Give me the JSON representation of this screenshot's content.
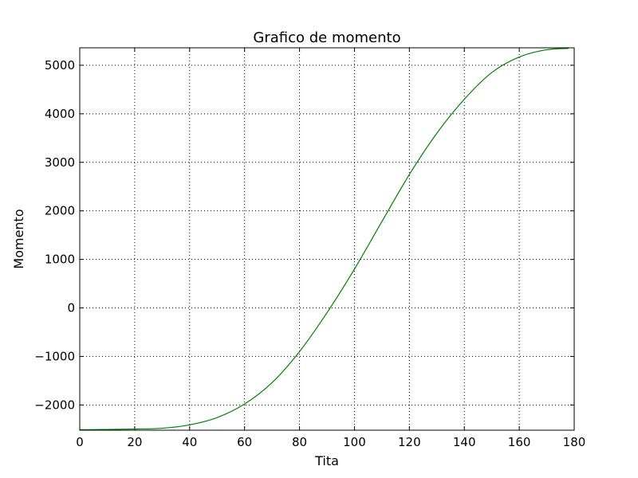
{
  "chart_data": {
    "type": "line",
    "title": "Grafico de momento",
    "xlabel": "Tita",
    "ylabel": "Momento",
    "xlim": [
      0,
      180
    ],
    "ylim": [
      -2520,
      5360
    ],
    "xticks": [
      0,
      20,
      40,
      60,
      80,
      100,
      120,
      140,
      160,
      180
    ],
    "yticks": [
      -2000,
      -1000,
      0,
      1000,
      2000,
      3000,
      4000,
      5000
    ],
    "ytick_labels": [
      "−2000",
      "−1000",
      "0",
      "1000",
      "2000",
      "3000",
      "4000",
      "5000"
    ],
    "grid": true,
    "series": [
      {
        "color": "#008000",
        "x": [
          0,
          10,
          20,
          30,
          40,
          50,
          60,
          70,
          80,
          90,
          100,
          110,
          120,
          130,
          140,
          150,
          160,
          170,
          178
        ],
        "y": [
          -2510,
          -2505,
          -2495,
          -2480,
          -2410,
          -2260,
          -1980,
          -1540,
          -900,
          -100,
          800,
          1780,
          2750,
          3600,
          4300,
          4850,
          5170,
          5320,
          5350
        ]
      }
    ]
  }
}
